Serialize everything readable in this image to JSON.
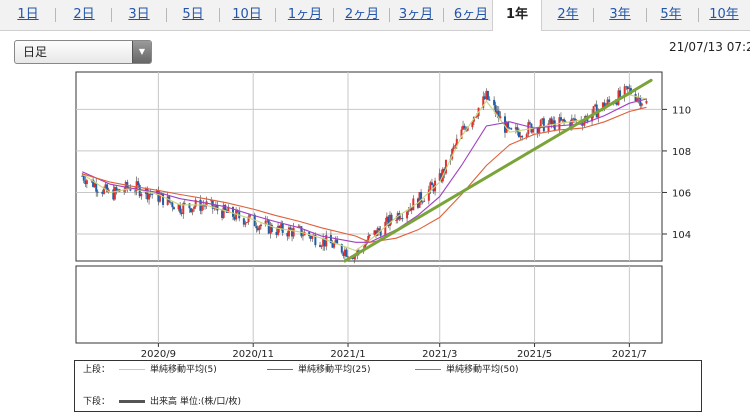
{
  "tabs": [
    {
      "label": "1日",
      "active": false
    },
    {
      "label": "2日",
      "active": false
    },
    {
      "label": "3日",
      "active": false
    },
    {
      "label": "5日",
      "active": false
    },
    {
      "label": "10日",
      "active": false
    },
    {
      "label": "1ヶ月",
      "active": false
    },
    {
      "label": "2ヶ月",
      "active": false
    },
    {
      "label": "3ヶ月",
      "active": false
    },
    {
      "label": "6ヶ月",
      "active": false
    },
    {
      "label": "1年",
      "active": true
    },
    {
      "label": "2年",
      "active": false
    },
    {
      "label": "3年",
      "active": false
    },
    {
      "label": "5年",
      "active": false
    },
    {
      "label": "10年",
      "active": false
    }
  ],
  "select": {
    "value": "日足"
  },
  "datetime": "21/07/13 07:2",
  "chart_data": {
    "type": "line",
    "x_tick_labels": [
      "2020/9",
      "2020/11",
      "2021/1",
      "2021/3",
      "2021/5",
      "2021/7"
    ],
    "y_ticks": [
      104,
      106,
      108,
      110
    ],
    "ylim": [
      102.7,
      111.8
    ],
    "x": [
      "2020/7/14",
      "2020/8/1",
      "2020/8/15",
      "2020/9/1",
      "2020/9/15",
      "2020/10/1",
      "2020/10/15",
      "2020/11/1",
      "2020/11/15",
      "2020/12/1",
      "2020/12/15",
      "2021/1/6",
      "2021/1/15",
      "2021/2/1",
      "2021/2/15",
      "2021/3/1",
      "2021/3/15",
      "2021/3/31",
      "2021/4/15",
      "2021/5/1",
      "2021/5/15",
      "2021/6/1",
      "2021/6/15",
      "2021/7/1",
      "2021/7/12"
    ],
    "close": [
      106.8,
      105.9,
      106.3,
      105.8,
      105.3,
      105.4,
      105.0,
      104.6,
      104.2,
      104.1,
      103.7,
      103.0,
      103.8,
      104.9,
      105.6,
      106.6,
      108.9,
      110.6,
      108.8,
      109.2,
      109.3,
      109.5,
      110.2,
      110.9,
      110.3
    ],
    "series": [
      {
        "name": "単純移動平均(5)",
        "color": "#c9d47a",
        "values": [
          106.9,
          106.0,
          106.2,
          105.9,
          105.4,
          105.4,
          105.1,
          104.7,
          104.3,
          104.1,
          103.8,
          103.2,
          103.7,
          104.8,
          105.5,
          106.5,
          108.7,
          110.4,
          108.9,
          109.1,
          109.3,
          109.5,
          110.1,
          110.7,
          110.5
        ]
      },
      {
        "name": "単純移動平均(25)",
        "color": "#a040c0",
        "values": [
          107.0,
          106.4,
          106.2,
          106.0,
          105.7,
          105.5,
          105.3,
          104.9,
          104.6,
          104.3,
          103.9,
          103.6,
          103.6,
          104.2,
          104.9,
          105.8,
          107.3,
          109.2,
          109.4,
          109.1,
          109.2,
          109.3,
          109.7,
          110.3,
          110.5
        ]
      },
      {
        "name": "単純移動平均(50)",
        "color": "#e0603a",
        "values": [
          106.9,
          106.5,
          106.3,
          106.1,
          105.9,
          105.7,
          105.5,
          105.2,
          104.9,
          104.6,
          104.3,
          103.9,
          103.6,
          103.8,
          104.2,
          104.8,
          105.9,
          107.3,
          108.3,
          108.8,
          109.0,
          109.1,
          109.4,
          109.9,
          110.1
        ]
      }
    ],
    "trendline": {
      "color": "#7aa43a",
      "x": [
        "2020/12/30",
        "2021/7/15"
      ],
      "y": [
        102.7,
        111.4
      ]
    }
  },
  "legend": {
    "upper_label": "上段：",
    "upper_items": [
      {
        "label": "単純移動平均(5)",
        "color": "#c9d47a"
      },
      {
        "label": "単純移動平均(25)",
        "color": "#a040c0"
      },
      {
        "label": "単純移動平均(50)",
        "color": "#e0603a"
      }
    ],
    "lower_label": "下段：",
    "lower_items": [
      {
        "label": "出来高 単位:(株/口/枚)",
        "color": "#555555"
      }
    ]
  }
}
